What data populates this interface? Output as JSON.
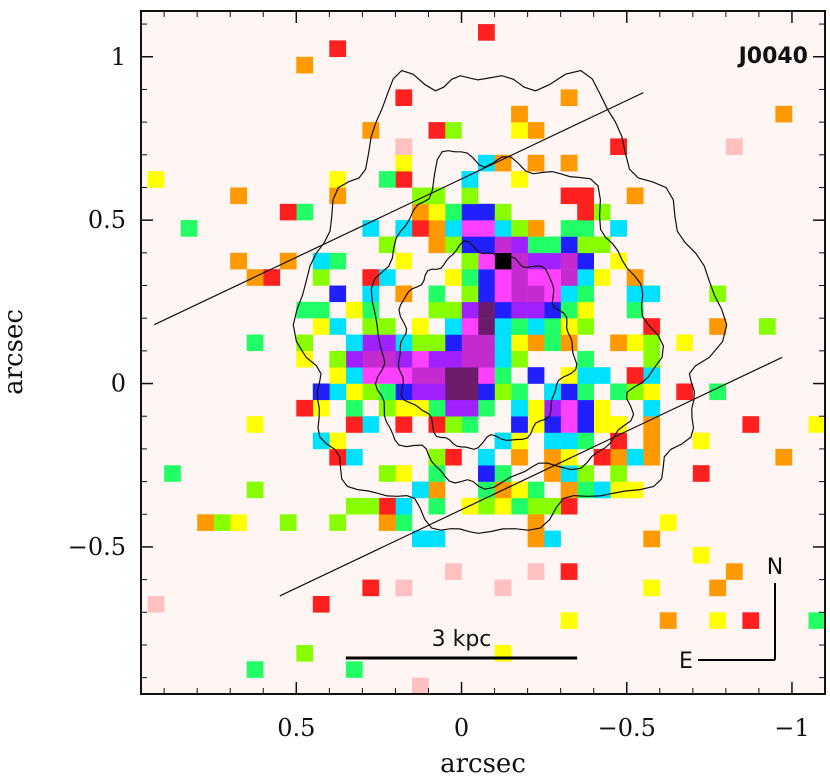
{
  "chart_data": {
    "type": "heatmap",
    "title": "J0040",
    "xlabel": "arcsec",
    "ylabel": "arcsec",
    "xlim": [
      0.97,
      -1.1
    ],
    "ylim": [
      -0.95,
      1.14
    ],
    "x_ticks": [
      {
        "value": 0.5,
        "label": "0.5"
      },
      {
        "value": 0,
        "label": "0"
      },
      {
        "value": -0.5,
        "label": "−0.5"
      },
      {
        "value": -1,
        "label": "−1"
      }
    ],
    "y_ticks": [
      {
        "value": 1,
        "label": "1"
      },
      {
        "value": 0.5,
        "label": "0.5"
      },
      {
        "value": 0,
        "label": "0"
      },
      {
        "value": -0.5,
        "label": "−0.5"
      }
    ],
    "annotations": {
      "scale_bar": {
        "label": "3 kpc",
        "x_from": 0.35,
        "x_to": -0.35,
        "y": -0.84
      },
      "compass": {
        "north": "N",
        "east": "E"
      }
    },
    "slit_lines": [
      {
        "from": [
          0.93,
          0.18
        ],
        "to": [
          -0.55,
          0.89
        ]
      },
      {
        "from": [
          0.55,
          -0.65
        ],
        "to": [
          -0.97,
          0.08
        ]
      }
    ],
    "contour_levels": [
      {
        "level": 1,
        "center": [
          -0.05,
          0.08
        ],
        "rx": [
          0.52,
          0.7
        ],
        "ry": [
          0.52,
          0.88
        ]
      },
      {
        "level": 2,
        "center": [
          -0.07,
          0.08
        ],
        "rx": [
          0.33,
          0.5
        ],
        "ry": [
          0.38,
          0.62
        ]
      },
      {
        "level": 3,
        "center": [
          -0.05,
          0.11
        ],
        "rx": [
          0.24,
          0.28
        ],
        "ry": [
          0.3,
          0.3
        ]
      }
    ],
    "colormap": [
      "#000000",
      "#6a1b6a",
      "#c42ad0",
      "#ff40ff",
      "#a020ff",
      "#2020ff",
      "#00e0ff",
      "#22ff66",
      "#88ff00",
      "#ffff00",
      "#ff9900",
      "#ff2020",
      "#ffc0c0"
    ],
    "blobs": [
      {
        "x": 0.0,
        "y": -0.0,
        "peak": 1.0,
        "sx": 0.05,
        "sy": 0.06
      },
      {
        "x": -0.07,
        "y": 0.2,
        "peak": 0.95,
        "sx": 0.035,
        "sy": 0.04
      },
      {
        "x": -0.13,
        "y": 0.38,
        "peak": 0.85,
        "sx": 0.05,
        "sy": 0.05
      },
      {
        "x": -0.32,
        "y": 0.36,
        "peak": 0.7,
        "sx": 0.04,
        "sy": 0.05
      },
      {
        "x": 0.25,
        "y": 0.07,
        "peak": 0.75,
        "sx": 0.06,
        "sy": 0.05
      },
      {
        "x": 0.1,
        "y": 0.03,
        "peak": 0.65,
        "sx": 0.09,
        "sy": 0.05
      },
      {
        "x": -0.05,
        "y": 0.1,
        "peak": 0.8,
        "sx": 0.05,
        "sy": 0.09
      },
      {
        "x": -0.32,
        "y": -0.1,
        "peak": 0.55,
        "sx": 0.05,
        "sy": 0.06
      },
      {
        "x": -0.2,
        "y": 0.3,
        "peak": 0.6,
        "sx": 0.1,
        "sy": 0.08
      },
      {
        "x": -0.05,
        "y": 0.48,
        "peak": 0.5,
        "sx": 0.05,
        "sy": 0.05
      }
    ]
  }
}
